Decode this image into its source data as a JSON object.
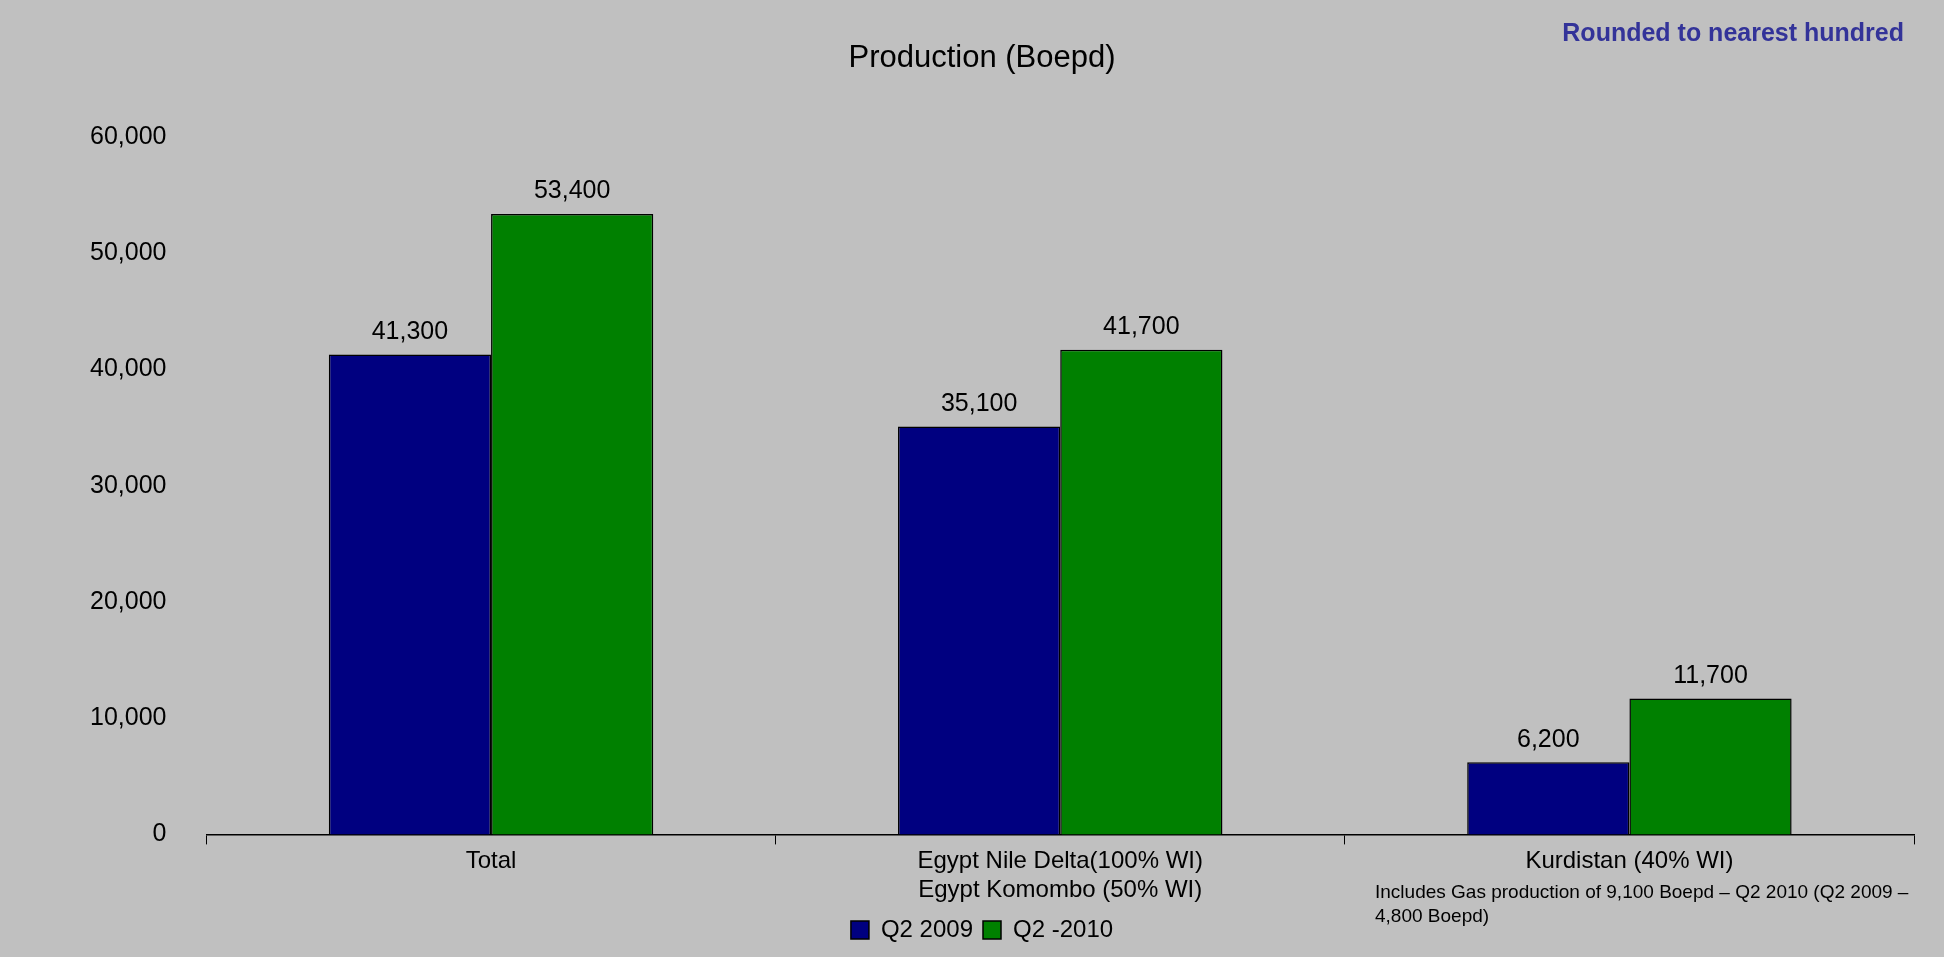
{
  "chart_data": {
    "type": "bar",
    "title": "Production (Boepd)",
    "categories": [
      "Total",
      "Egypt Nile Delta(100% WI)\nEgypt Komombo (50% WI)",
      "Kurdistan (40% WI)"
    ],
    "series": [
      {
        "name": "Q2 2009",
        "color": "#000080",
        "values": [
          41300,
          35100,
          6200
        ],
        "value_labels": [
          "41,300",
          "35,100",
          "6,200"
        ]
      },
      {
        "name": "Q2 -2010",
        "color": "#008000",
        "values": [
          53400,
          41700,
          11700
        ],
        "value_labels": [
          "53,400",
          "41,700",
          "11,700"
        ]
      }
    ],
    "ylim": [
      0,
      60000
    ],
    "yticks": [
      {
        "value": 0,
        "label": "0"
      },
      {
        "value": 10000,
        "label": "10,000"
      },
      {
        "value": 20000,
        "label": "20,000"
      },
      {
        "value": 30000,
        "label": "30,000"
      },
      {
        "value": 40000,
        "label": "40,000"
      },
      {
        "value": 50000,
        "label": "50,000"
      },
      {
        "value": 60000,
        "label": "60,000"
      }
    ],
    "grid": false,
    "legend": "bottom",
    "annotations": [
      "Rounded to nearest hundred",
      "Includes Gas production of 9,100 Boepd – Q2 2010 (Q2 2009 – 4,800 Boepd)"
    ]
  }
}
